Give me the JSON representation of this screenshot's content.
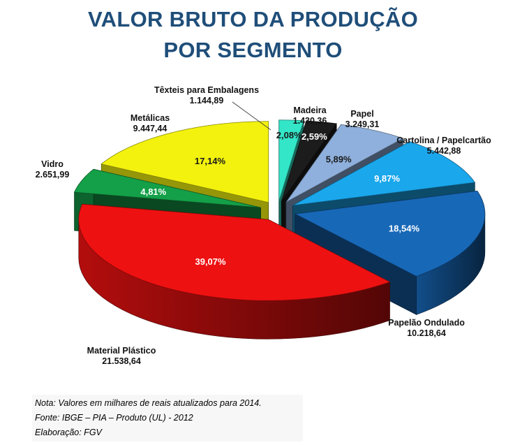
{
  "header": {
    "title_line1": "VALOR BRUTO DA PRODUÇÃO",
    "title_line2": "POR SEGMENTO"
  },
  "chart_data": {
    "type": "pie",
    "title": "VALOR BRUTO DA PRODUÇÃO POR SEGMENTO",
    "style": "3d-exploded",
    "slices": [
      {
        "name": "Têxteis para Embalagens",
        "value_label": "1.144,89",
        "value": 1144.89,
        "percent": 2.08,
        "percent_label": "2,08%",
        "color": "#33e6c8"
      },
      {
        "name": "Madeira",
        "value_label": "1.430,36",
        "value": 1430.36,
        "percent": 2.59,
        "percent_label": "2,59%",
        "color": "#1c1c1c"
      },
      {
        "name": "Papel",
        "value_label": "3.249,31",
        "value": 3249.31,
        "percent": 5.89,
        "percent_label": "5,89%",
        "color": "#8fb0dc"
      },
      {
        "name": "Cartolina / Papelcartão",
        "value_label": "5.442,88",
        "value": 5442.88,
        "percent": 9.87,
        "percent_label": "9,87%",
        "color": "#1aa7ec"
      },
      {
        "name": "Papelão Ondulado",
        "value_label": "10.218,64",
        "value": 10218.64,
        "percent": 18.54,
        "percent_label": "18,54%",
        "color": "#1868b8"
      },
      {
        "name": "Material Plástico",
        "value_label": "21.538,64",
        "value": 21538.64,
        "percent": 39.07,
        "percent_label": "39,07%",
        "color": "#ee1111"
      },
      {
        "name": "Vidro",
        "value_label": "2.651,99",
        "value": 2651.99,
        "percent": 4.81,
        "percent_label": "4,81%",
        "color": "#14a048"
      },
      {
        "name": "Metálicas",
        "value_label": "9.447,44",
        "value": 9447.44,
        "percent": 17.14,
        "percent_label": "17,14%",
        "color": "#f2f20e"
      }
    ]
  },
  "notes": {
    "nota": "Nota: Valores em milhares de reais atualizados para 2014.",
    "fonte": "Fonte: IBGE – PIA – Produto (UL) - 2012",
    "elaboracao": "Elaboração: FGV"
  }
}
